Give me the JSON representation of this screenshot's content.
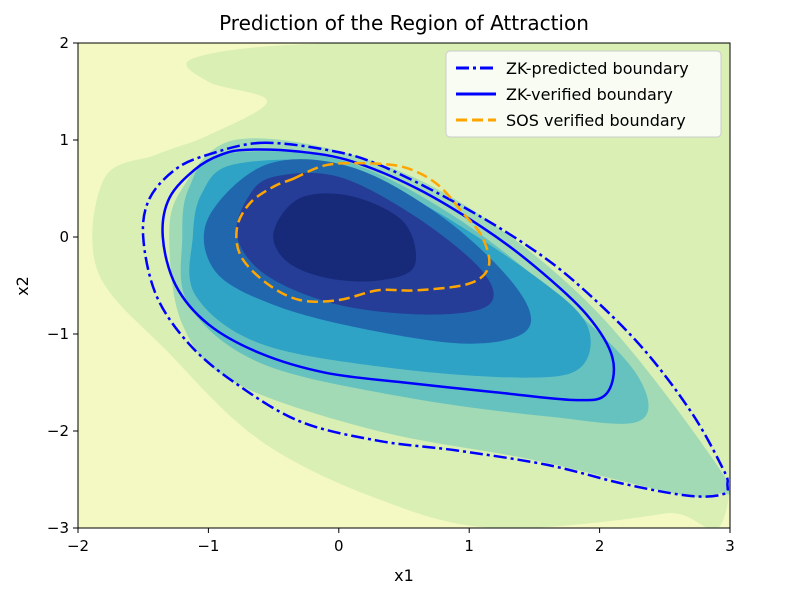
{
  "chart_data": {
    "type": "contour",
    "title": "Prediction of the Region of Attraction",
    "xlabel": "x1",
    "ylabel": "x2",
    "xlim": [
      -2,
      3
    ],
    "ylim": [
      -3,
      2
    ],
    "xticks": [
      -2,
      -1,
      0,
      1,
      2,
      3
    ],
    "yticks": [
      -3,
      -2,
      -1,
      0,
      1,
      2
    ],
    "xtick_labels": [
      "−2",
      "−1",
      "0",
      "1",
      "2",
      "3"
    ],
    "ytick_labels": [
      "−3",
      "−2",
      "−1",
      "0",
      "1",
      "2"
    ],
    "grid": false,
    "legend_position": "top-right",
    "colormap": "YlGnBu",
    "colors": {
      "background": "#f4f9c4",
      "level_1": "#d9efb4",
      "level_2": "#a1dab4",
      "level_3": "#66c2bf",
      "level_4": "#2ea3c6",
      "level_5": "#2167ae",
      "level_6": "#253d97",
      "level_7": "#172a7a",
      "zk_predicted": "#0000ff",
      "zk_verified": "#0000ff",
      "sos_verified": "#ffa500"
    },
    "filled_contours": [
      {
        "level": 1,
        "points": [
          [
            -1.1,
            1.85
          ],
          [
            0,
            2
          ],
          [
            3,
            2
          ],
          [
            3,
            -2.6
          ],
          [
            2.5,
            -2.85
          ],
          [
            1.2,
            -3
          ],
          [
            0.3,
            -2.7
          ],
          [
            -0.6,
            -2.1
          ],
          [
            -1.3,
            -1.2
          ],
          [
            -1.85,
            -0.35
          ],
          [
            -1.8,
            0.6
          ],
          [
            -1.4,
            0.85
          ],
          [
            -1.0,
            1.05
          ],
          [
            -0.55,
            1.4
          ],
          [
            -1.0,
            1.6
          ]
        ]
      },
      {
        "level": 2,
        "points": [
          [
            -0.8,
            1.0
          ],
          [
            0.1,
            0.85
          ],
          [
            1.0,
            0.3
          ],
          [
            2.0,
            -0.8
          ],
          [
            2.95,
            -2.45
          ],
          [
            2.9,
            -2.65
          ],
          [
            2.6,
            -2.65
          ],
          [
            1.5,
            -2.3
          ],
          [
            0.3,
            -2.0
          ],
          [
            -0.8,
            -1.5
          ],
          [
            -1.2,
            -0.9
          ],
          [
            -1.3,
            0.0
          ],
          [
            -1.2,
            0.5
          ]
        ]
      },
      {
        "level": 3,
        "points": [
          [
            -0.9,
            0.85
          ],
          [
            0.0,
            0.8
          ],
          [
            0.9,
            0.2
          ],
          [
            1.8,
            -0.75
          ],
          [
            2.3,
            -1.45
          ],
          [
            2.3,
            -1.9
          ],
          [
            1.6,
            -1.85
          ],
          [
            0.5,
            -1.65
          ],
          [
            -0.6,
            -1.3
          ],
          [
            -1.15,
            -0.7
          ],
          [
            -1.2,
            0.0
          ],
          [
            -1.15,
            0.5
          ]
        ]
      },
      {
        "level": 4,
        "points": [
          [
            -0.8,
            0.75
          ],
          [
            0.0,
            0.75
          ],
          [
            0.7,
            0.3
          ],
          [
            1.5,
            -0.4
          ],
          [
            1.9,
            -0.9
          ],
          [
            1.85,
            -1.35
          ],
          [
            1.4,
            -1.45
          ],
          [
            0.4,
            -1.35
          ],
          [
            -0.6,
            -1.1
          ],
          [
            -1.1,
            -0.6
          ],
          [
            -1.12,
            0.0
          ],
          [
            -1.05,
            0.45
          ]
        ]
      },
      {
        "level": 5,
        "points": [
          [
            -0.55,
            0.75
          ],
          [
            0.1,
            0.72
          ],
          [
            0.8,
            0.2
          ],
          [
            1.35,
            -0.5
          ],
          [
            1.45,
            -0.95
          ],
          [
            1.0,
            -1.1
          ],
          [
            0.2,
            -0.95
          ],
          [
            -0.5,
            -0.7
          ],
          [
            -0.95,
            -0.35
          ],
          [
            -1.0,
            0.2
          ]
        ]
      },
      {
        "level": 6,
        "points": [
          [
            -0.5,
            0.62
          ],
          [
            0.0,
            0.62
          ],
          [
            0.6,
            0.2
          ],
          [
            1.1,
            -0.35
          ],
          [
            1.15,
            -0.7
          ],
          [
            0.7,
            -0.8
          ],
          [
            0.0,
            -0.7
          ],
          [
            -0.55,
            -0.4
          ],
          [
            -0.78,
            0.0
          ],
          [
            -0.7,
            0.4
          ]
        ]
      },
      {
        "level": 7,
        "points": [
          [
            -0.3,
            0.4
          ],
          [
            0.1,
            0.42
          ],
          [
            0.5,
            0.15
          ],
          [
            0.58,
            -0.3
          ],
          [
            0.3,
            -0.45
          ],
          [
            -0.1,
            -0.42
          ],
          [
            -0.4,
            -0.25
          ],
          [
            -0.5,
            0.05
          ]
        ]
      }
    ],
    "series": [
      {
        "name": "ZK-predicted boundary",
        "style": "dashdot",
        "points": [
          [
            -0.6,
            0.97
          ],
          [
            -0.1,
            0.9
          ],
          [
            0.3,
            0.75
          ],
          [
            0.9,
            0.35
          ],
          [
            1.4,
            -0.05
          ],
          [
            1.8,
            -0.45
          ],
          [
            2.3,
            -1.1
          ],
          [
            2.7,
            -1.8
          ],
          [
            2.95,
            -2.4
          ],
          [
            2.98,
            -2.55
          ],
          [
            2.95,
            -2.65
          ],
          [
            2.7,
            -2.67
          ],
          [
            2.2,
            -2.55
          ],
          [
            1.6,
            -2.35
          ],
          [
            0.9,
            -2.2
          ],
          [
            0.3,
            -2.1
          ],
          [
            -0.3,
            -1.9
          ],
          [
            -0.8,
            -1.5
          ],
          [
            -1.15,
            -1.1
          ],
          [
            -1.4,
            -0.6
          ],
          [
            -1.5,
            0.0
          ],
          [
            -1.45,
            0.4
          ],
          [
            -1.25,
            0.7
          ],
          [
            -1.0,
            0.85
          ]
        ]
      },
      {
        "name": "ZK-verified boundary",
        "style": "solid",
        "points": [
          [
            -0.7,
            0.9
          ],
          [
            -0.3,
            0.88
          ],
          [
            0.1,
            0.78
          ],
          [
            0.6,
            0.5
          ],
          [
            1.1,
            0.1
          ],
          [
            1.5,
            -0.3
          ],
          [
            1.9,
            -0.8
          ],
          [
            2.1,
            -1.25
          ],
          [
            2.05,
            -1.62
          ],
          [
            1.8,
            -1.68
          ],
          [
            1.2,
            -1.6
          ],
          [
            0.5,
            -1.5
          ],
          [
            -0.1,
            -1.4
          ],
          [
            -0.6,
            -1.2
          ],
          [
            -1.0,
            -0.9
          ],
          [
            -1.25,
            -0.5
          ],
          [
            -1.35,
            0.0
          ],
          [
            -1.3,
            0.4
          ],
          [
            -1.1,
            0.7
          ],
          [
            -0.9,
            0.85
          ]
        ]
      },
      {
        "name": "SOS verified boundary",
        "style": "dashed",
        "points": [
          [
            -0.35,
            0.6
          ],
          [
            -0.1,
            0.74
          ],
          [
            0.2,
            0.76
          ],
          [
            0.5,
            0.72
          ],
          [
            0.75,
            0.55
          ],
          [
            0.95,
            0.25
          ],
          [
            1.1,
            0.0
          ],
          [
            1.15,
            -0.3
          ],
          [
            1.0,
            -0.48
          ],
          [
            0.6,
            -0.55
          ],
          [
            0.3,
            -0.55
          ],
          [
            0.0,
            -0.65
          ],
          [
            -0.3,
            -0.65
          ],
          [
            -0.55,
            -0.48
          ],
          [
            -0.75,
            -0.2
          ],
          [
            -0.78,
            0.1
          ],
          [
            -0.68,
            0.35
          ],
          [
            -0.5,
            0.52
          ]
        ]
      }
    ]
  }
}
